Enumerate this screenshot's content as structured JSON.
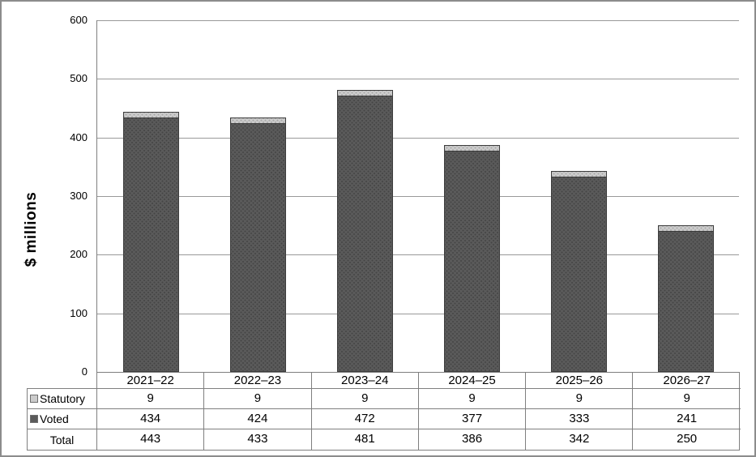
{
  "chart_data": {
    "type": "bar",
    "stacked": true,
    "ylabel": "$ millions",
    "categories": [
      "2021–22",
      "2022–23",
      "2023–24",
      "2024–25",
      "2025–26",
      "2026–27"
    ],
    "series": [
      {
        "name": "Statutory",
        "values": [
          9,
          9,
          9,
          9,
          9,
          9
        ],
        "color": "#cbcbcb"
      },
      {
        "name": "Voted",
        "values": [
          434,
          424,
          472,
          377,
          333,
          241
        ],
        "color": "#5a5a5a"
      }
    ],
    "totals": {
      "name": "Total",
      "values": [
        443,
        433,
        481,
        386,
        342,
        250
      ]
    },
    "ylim": [
      0,
      600
    ],
    "yticks": [
      0,
      100,
      200,
      300,
      400,
      500,
      600
    ],
    "grid": true,
    "gridline_color": "#999999",
    "axis_color": "#7f7f7f",
    "bar_border_color": "#3d3d3d",
    "legend_position": "table-left"
  }
}
